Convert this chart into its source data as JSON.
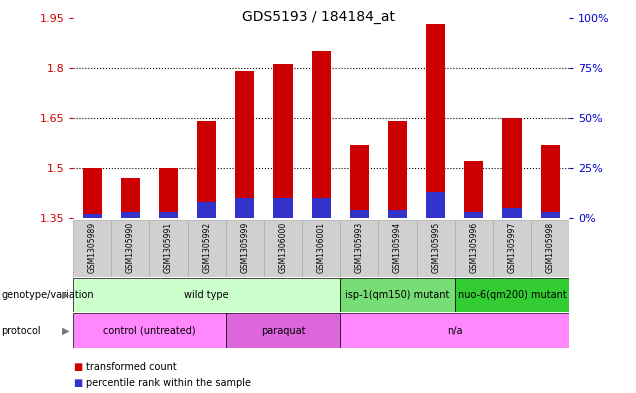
{
  "title": "GDS5193 / 184184_at",
  "samples": [
    "GSM1305989",
    "GSM1305990",
    "GSM1305991",
    "GSM1305992",
    "GSM1305999",
    "GSM1306000",
    "GSM1306001",
    "GSM1305993",
    "GSM1305994",
    "GSM1305995",
    "GSM1305996",
    "GSM1305997",
    "GSM1305998"
  ],
  "transformed_count": [
    1.5,
    1.47,
    1.5,
    1.64,
    1.79,
    1.81,
    1.85,
    1.57,
    1.64,
    1.93,
    1.52,
    1.65,
    1.57
  ],
  "percentile_rank": [
    2,
    3,
    3,
    8,
    10,
    10,
    10,
    4,
    4,
    13,
    3,
    5,
    3
  ],
  "ymin": 1.35,
  "ymax": 1.95,
  "yticks": [
    1.35,
    1.5,
    1.65,
    1.8,
    1.95
  ],
  "right_ytick_vals": [
    0,
    25,
    50,
    75,
    100
  ],
  "bar_color": "#cc0000",
  "percentile_color": "#3333cc",
  "bar_width": 0.5,
  "grid_color": "#000000",
  "bg_color": "#ffffff",
  "plot_bg": "#ffffff",
  "genotype_groups": [
    {
      "label": "wild type",
      "start": 0,
      "end": 6,
      "color": "#ccffcc"
    },
    {
      "label": "isp-1(qm150) mutant",
      "start": 7,
      "end": 9,
      "color": "#77dd77"
    },
    {
      "label": "nuo-6(qm200) mutant",
      "start": 10,
      "end": 12,
      "color": "#33cc33"
    }
  ],
  "protocol_groups": [
    {
      "label": "control (untreated)",
      "start": 0,
      "end": 3,
      "color": "#ff88ff"
    },
    {
      "label": "paraquat",
      "start": 4,
      "end": 6,
      "color": "#dd66dd"
    },
    {
      "label": "n/a",
      "start": 7,
      "end": 12,
      "color": "#ff88ff"
    }
  ],
  "legend_items": [
    {
      "label": "transformed count",
      "color": "#cc0000"
    },
    {
      "label": "percentile rank within the sample",
      "color": "#3333cc"
    }
  ],
  "left_axis_color": "#cc0000",
  "right_axis_color": "#0000cc",
  "sample_box_color": "#d0d0d0",
  "sample_box_edge": "#aaaaaa"
}
